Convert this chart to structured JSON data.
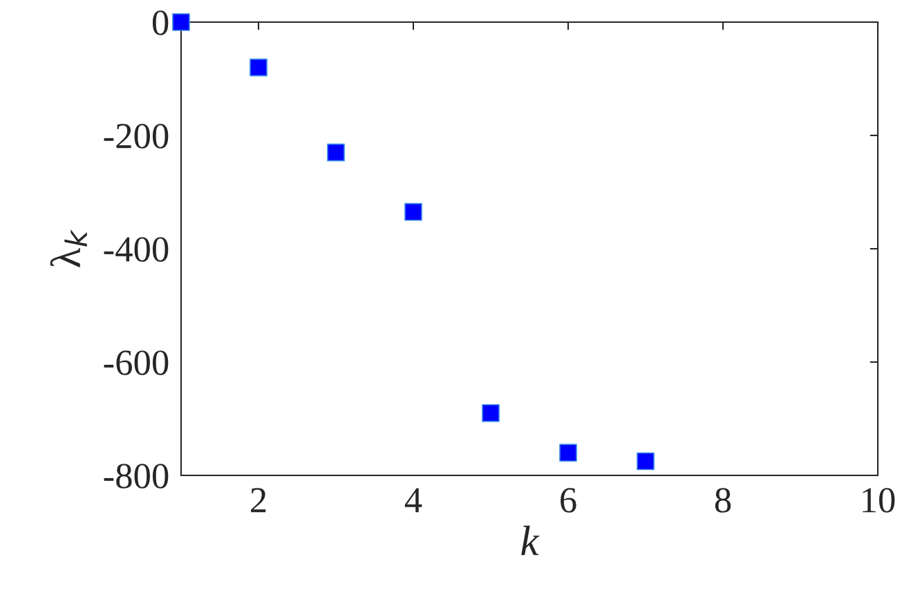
{
  "chart_data": {
    "type": "scatter",
    "xlabel": "k",
    "ylabel": "λ$_{k}$",
    "x": [
      1,
      2,
      3,
      4,
      5,
      6,
      7
    ],
    "series": [
      {
        "color": "#0000ff",
        "values": [
          0,
          -80,
          -230,
          -335,
          -690,
          -760,
          -775
        ]
      }
    ],
    "marker": "square",
    "xlim": [
      1,
      10
    ],
    "xticks": [
      2,
      4,
      6,
      8,
      10
    ],
    "ylim": [
      -800,
      0
    ],
    "yticks": [
      -800,
      -600,
      -400,
      -200,
      0
    ],
    "grid": false,
    "legend": false
  }
}
